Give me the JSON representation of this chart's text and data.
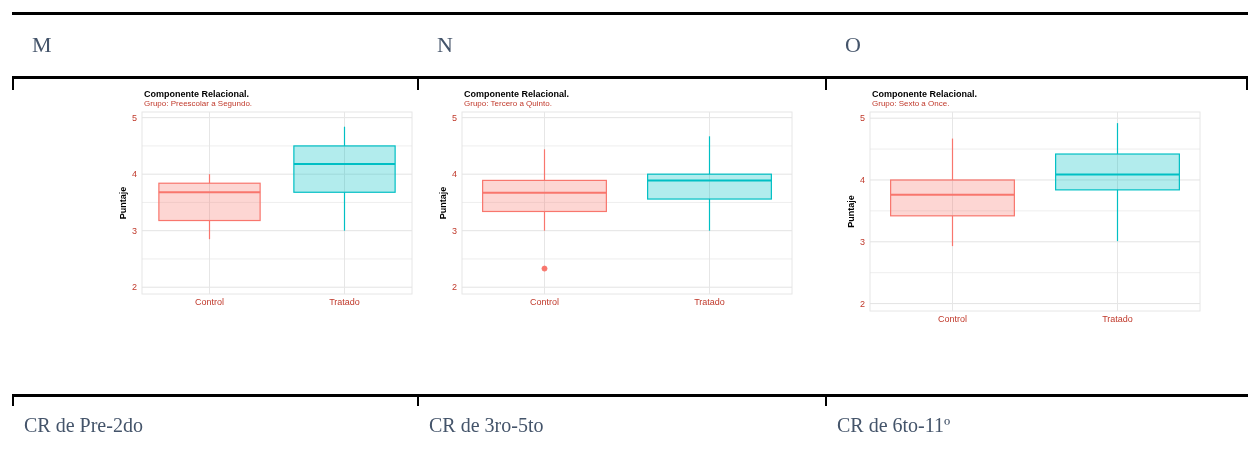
{
  "chart_data": [
    {
      "type": "box",
      "title": "Componente Relacional.",
      "subtitle": "Grupo: Preescolar a Segundo.",
      "ylabel": "Puntaje",
      "categories": [
        "Control",
        "Tratado"
      ],
      "colors": [
        "#f8766d",
        "#00bfc4"
      ],
      "ylim": [
        1.88,
        5.1
      ],
      "yticks": [
        2,
        {
          "value": 2.5,
          "label": null
        },
        3,
        {
          "value": 3.5,
          "label": null
        },
        4,
        {
          "value": 4.5,
          "label": null
        },
        5
      ],
      "grid": true,
      "annotations": [
        "M",
        "CR de Pre-2do"
      ],
      "boxes": [
        {
          "low": 2.85,
          "q1": 3.18,
          "median": 3.68,
          "q3": 3.84,
          "high": 4.0
        },
        {
          "low": 3.0,
          "q1": 3.68,
          "median": 4.18,
          "q3": 4.5,
          "high": 4.84
        }
      ]
    },
    {
      "type": "box",
      "title": "Componente Relacional.",
      "subtitle": "Grupo: Tercero a Quinto.",
      "ylabel": "Puntaje",
      "categories": [
        "Control",
        "Tratado"
      ],
      "colors": [
        "#f8766d",
        "#00bfc4"
      ],
      "ylim": [
        1.88,
        5.1
      ],
      "yticks": [
        2,
        {
          "value": 2.5,
          "label": null
        },
        3,
        {
          "value": 3.5,
          "label": null
        },
        4,
        {
          "value": 4.5,
          "label": null
        },
        5
      ],
      "grid": true,
      "annotations": [
        "N",
        "CR de 3ro-5to"
      ],
      "boxes": [
        {
          "low": 3.0,
          "q1": 3.34,
          "median": 3.67,
          "q3": 3.89,
          "high": 4.44,
          "outliers": [
            2.33
          ]
        },
        {
          "low": 3.0,
          "q1": 3.56,
          "median": 3.89,
          "q3": 4.0,
          "high": 4.67
        }
      ]
    },
    {
      "type": "box",
      "title": "Componente Relacional.",
      "subtitle": "Grupo: Sexto a Once.",
      "ylabel": "Puntaje",
      "categories": [
        "Control",
        "Tratado"
      ],
      "colors": [
        "#f8766d",
        "#00bfc4"
      ],
      "ylim": [
        1.88,
        5.1
      ],
      "yticks": [
        2,
        {
          "value": 2.5,
          "label": null
        },
        3,
        {
          "value": 3.5,
          "label": null
        },
        4,
        {
          "value": 4.5,
          "label": null
        },
        5
      ],
      "grid": true,
      "annotations": [
        "O",
        "CR de 6to-11º"
      ],
      "boxes": [
        {
          "low": 2.93,
          "q1": 3.42,
          "median": 3.76,
          "q3": 4.0,
          "high": 4.67
        },
        {
          "low": 3.01,
          "q1": 3.84,
          "median": 4.09,
          "q3": 4.42,
          "high": 4.92
        }
      ]
    }
  ]
}
